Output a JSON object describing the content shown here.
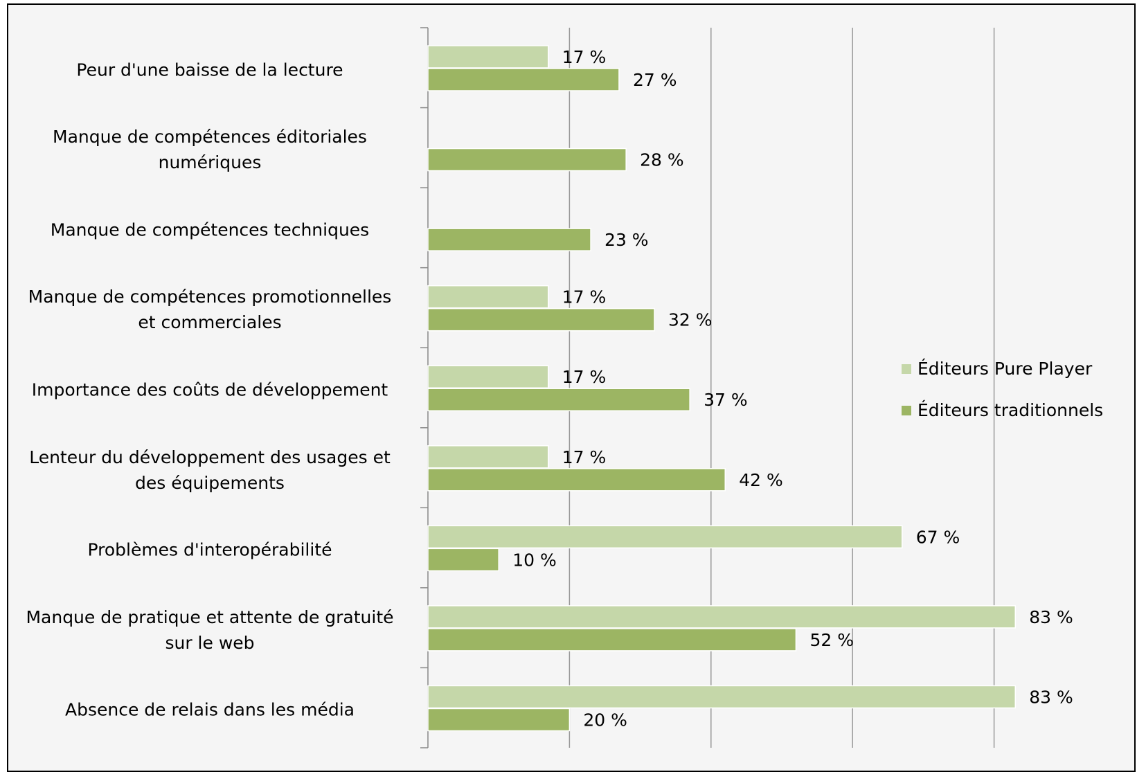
{
  "chart_data": {
    "type": "barh",
    "categories": [
      "Peur d'une baisse de la lecture",
      "Manque de compétences éditoriales\nnumériques",
      "Manque de compétences techniques",
      "Manque de compétences promotionnelles\net commerciales",
      "Importance des coûts de développement",
      "Lenteur du développement des usages et\ndes équipements",
      "Problèmes d'interopérabilité",
      "Manque de pratique et attente de gratuité\nsur le web",
      "Absence de relais dans les média"
    ],
    "series": [
      {
        "name": "Éditeurs Pure Player",
        "color": "#c5d7a9",
        "values": [
          17,
          null,
          null,
          17,
          17,
          17,
          67,
          83,
          83
        ],
        "value_labels": [
          "17 %",
          null,
          null,
          "17 %",
          "17 %",
          "17 %",
          "67 %",
          "83 %",
          "83 %"
        ]
      },
      {
        "name": "Éditeurs traditionnels",
        "color": "#9cb563",
        "values": [
          27,
          28,
          23,
          32,
          37,
          42,
          10,
          52,
          20
        ],
        "value_labels": [
          "27 %",
          "28 %",
          "23 %",
          "32 %",
          "37 %",
          "42 %",
          "10 %",
          "52 %",
          "20 %"
        ]
      }
    ],
    "xlim": [
      0,
      90
    ],
    "xticks": [
      0,
      20,
      40,
      60,
      80
    ],
    "grid": true,
    "legend": "right"
  }
}
